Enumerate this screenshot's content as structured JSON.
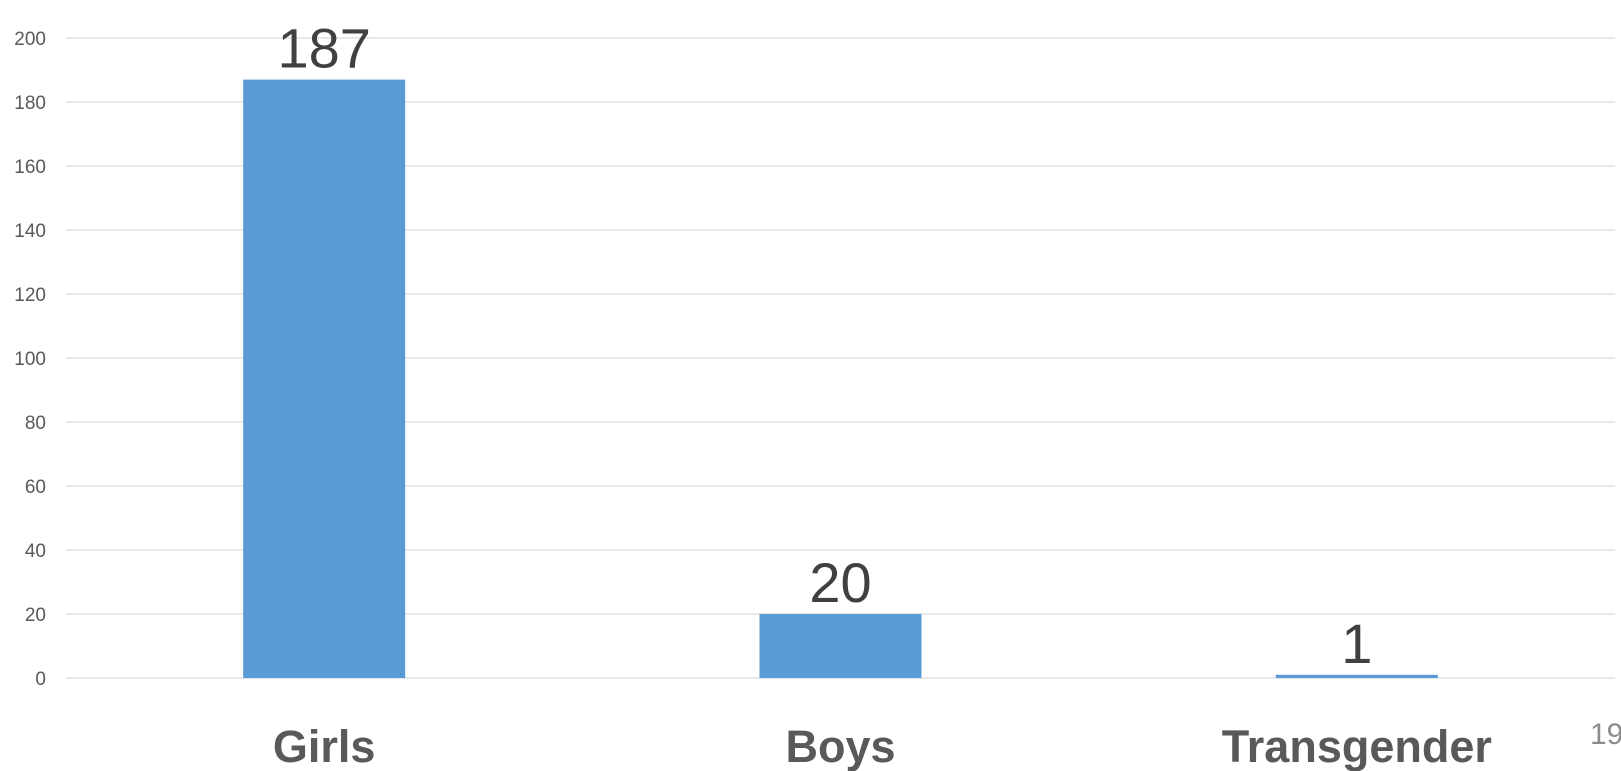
{
  "chart_data": {
    "type": "bar",
    "categories": [
      "Girls",
      "Boys",
      "Transgender"
    ],
    "values": [
      187,
      20,
      1
    ],
    "title": "",
    "xlabel": "",
    "ylabel": "",
    "ylim": [
      0,
      200
    ],
    "y_ticks": [
      0,
      20,
      40,
      60,
      80,
      100,
      120,
      140,
      160,
      180,
      200
    ],
    "grid": true,
    "legend": "none",
    "colors": {
      "bar": "#5b9bd5"
    }
  },
  "page_number": "19"
}
